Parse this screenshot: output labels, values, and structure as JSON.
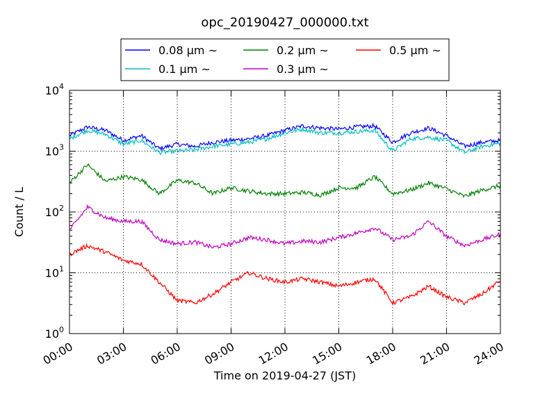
{
  "chart_data": {
    "type": "line",
    "title": "opc_20190427_000000.txt",
    "xlabel": "Time on 2019-04-27 (JST)",
    "ylabel": "Count / L",
    "yscale": "log",
    "ylim": [
      1,
      10000
    ],
    "xlim": [
      "00:00",
      "24:00"
    ],
    "grid": true,
    "legend_position": "top-center",
    "x_ticks": [
      "00:00",
      "03:00",
      "06:00",
      "09:00",
      "12:00",
      "15:00",
      "18:00",
      "21:00",
      "24:00"
    ],
    "y_ticks": [
      {
        "value": 1,
        "mantissa": "10",
        "exponent": "0"
      },
      {
        "value": 10,
        "mantissa": "10",
        "exponent": "1"
      },
      {
        "value": 100,
        "mantissa": "10",
        "exponent": "2"
      },
      {
        "value": 1000,
        "mantissa": "10",
        "exponent": "3"
      },
      {
        "value": 10000,
        "mantissa": "10",
        "exponent": "4"
      }
    ],
    "x": [
      "00:00",
      "01:00",
      "02:00",
      "03:00",
      "04:00",
      "05:00",
      "06:00",
      "07:00",
      "08:00",
      "09:00",
      "10:00",
      "11:00",
      "12:00",
      "13:00",
      "14:00",
      "15:00",
      "16:00",
      "17:00",
      "18:00",
      "19:00",
      "20:00",
      "21:00",
      "22:00",
      "23:00",
      "24:00"
    ],
    "series": [
      {
        "name": "0.08 μm ~",
        "color": "#0000ff",
        "values": [
          1800,
          2500,
          2200,
          1500,
          1800,
          1100,
          1300,
          1200,
          1400,
          1500,
          1600,
          1800,
          2200,
          2600,
          2400,
          2300,
          2500,
          2600,
          1400,
          2000,
          2400,
          1800,
          1200,
          1400,
          1500
        ]
      },
      {
        "name": "0.1 μm ~",
        "color": "#00bfbf",
        "values": [
          1600,
          2200,
          1900,
          1300,
          1500,
          950,
          1000,
          1050,
          1200,
          1300,
          1400,
          1600,
          2000,
          2300,
          2000,
          2000,
          2100,
          2200,
          1000,
          1600,
          1700,
          1500,
          950,
          1200,
          1350
        ]
      },
      {
        "name": "0.2 μm ~",
        "color": "#008000",
        "values": [
          300,
          600,
          320,
          380,
          340,
          200,
          330,
          300,
          200,
          250,
          220,
          200,
          200,
          210,
          190,
          250,
          250,
          380,
          200,
          230,
          300,
          240,
          180,
          230,
          270
        ]
      },
      {
        "name": "0.3 μm ~",
        "color": "#bf00bf",
        "values": [
          50,
          120,
          80,
          70,
          70,
          35,
          30,
          32,
          26,
          30,
          38,
          35,
          30,
          33,
          32,
          38,
          45,
          55,
          35,
          40,
          70,
          40,
          28,
          35,
          43
        ]
      },
      {
        "name": "0.5 μm ~",
        "color": "#ff0000",
        "values": [
          20,
          28,
          22,
          16,
          14,
          7,
          3.5,
          3.2,
          4.5,
          7,
          10,
          8,
          7,
          8,
          7,
          6,
          7,
          8,
          3.2,
          4,
          6,
          4,
          3.2,
          4.5,
          7.5
        ]
      }
    ]
  }
}
